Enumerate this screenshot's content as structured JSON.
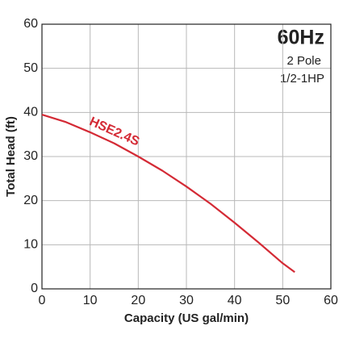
{
  "chart_data": {
    "type": "line",
    "xlabel": "Capacity (US gal/min)",
    "ylabel": "Total Head (ft)",
    "annotations": [
      "60Hz",
      "2 Pole",
      "1/2-1HP"
    ],
    "x": [
      0,
      5,
      10,
      15,
      20,
      25,
      30,
      35,
      40,
      45,
      50,
      52.5
    ],
    "series": [
      {
        "name": "HSE2.4S",
        "color": "#d42a35",
        "values": [
          39.5,
          37.8,
          35.5,
          33,
          30,
          26.8,
          23.2,
          19.3,
          15,
          10.5,
          5.8,
          3.8
        ]
      }
    ],
    "xlim": [
      0,
      60
    ],
    "ylim": [
      0,
      60
    ],
    "xticks": [
      0,
      10,
      20,
      30,
      40,
      50,
      60
    ],
    "yticks": [
      0,
      10,
      20,
      30,
      40,
      50,
      60
    ],
    "grid": true
  }
}
